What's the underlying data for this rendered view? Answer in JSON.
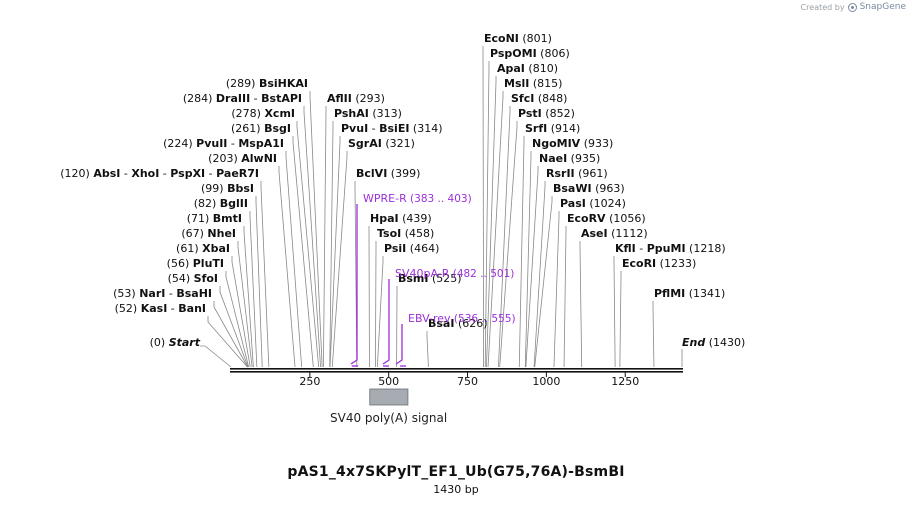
{
  "credit": {
    "prefix": "Created by",
    "brand": "SnapGene"
  },
  "plasmid": {
    "name": "pAS1_4x7SKPylT_EF1_Ub(G75,76A)-BsmBI",
    "length_label": "1430 bp"
  },
  "axis": {
    "min": 0,
    "max": 1430,
    "ticks": [
      250,
      500,
      750,
      1000,
      1250
    ]
  },
  "ends": {
    "start_label": "Start",
    "start_pos": "(0)",
    "end_label": "End",
    "end_pos": "(1430)"
  },
  "colors": {
    "primer": "#9b30d9",
    "feature": "#a7abb2",
    "line": "#888888",
    "text": "#111111"
  },
  "sites": [
    {
      "id": "kasi",
      "pos": 52,
      "pos_label": "(52)",
      "enzymes": [
        "KasI",
        "BanI"
      ]
    },
    {
      "id": "nari",
      "pos": 53,
      "pos_label": "(53)",
      "enzymes": [
        "NarI",
        "BsaHI"
      ]
    },
    {
      "id": "sfoi",
      "pos": 54,
      "pos_label": "(54)",
      "enzymes": [
        "SfoI"
      ]
    },
    {
      "id": "pluti",
      "pos": 56,
      "pos_label": "(56)",
      "enzymes": [
        "PluTI"
      ]
    },
    {
      "id": "xbai",
      "pos": 61,
      "pos_label": "(61)",
      "enzymes": [
        "XbaI"
      ]
    },
    {
      "id": "nhei",
      "pos": 67,
      "pos_label": "(67)",
      "enzymes": [
        "NheI"
      ]
    },
    {
      "id": "bmti",
      "pos": 71,
      "pos_label": "(71)",
      "enzymes": [
        "BmtI"
      ]
    },
    {
      "id": "bglii",
      "pos": 82,
      "pos_label": "(82)",
      "enzymes": [
        "BglII"
      ]
    },
    {
      "id": "bbsi",
      "pos": 99,
      "pos_label": "(99)",
      "enzymes": [
        "BbsI"
      ]
    },
    {
      "id": "absi",
      "pos": 120,
      "pos_label": "(120)",
      "enzymes": [
        "AbsI",
        "XhoI",
        "PspXI",
        "PaeR7I"
      ]
    },
    {
      "id": "alwni",
      "pos": 203,
      "pos_label": "(203)",
      "enzymes": [
        "AlwNI"
      ]
    },
    {
      "id": "pvuii",
      "pos": 224,
      "pos_label": "(224)",
      "enzymes": [
        "PvuII",
        "MspA1I"
      ]
    },
    {
      "id": "bsgi",
      "pos": 261,
      "pos_label": "(261)",
      "enzymes": [
        "BsgI"
      ]
    },
    {
      "id": "xcmi",
      "pos": 278,
      "pos_label": "(278)",
      "enzymes": [
        "XcmI"
      ]
    },
    {
      "id": "draiii",
      "pos": 284,
      "pos_label": "(284)",
      "enzymes": [
        "DraIII",
        "BstAPI"
      ]
    },
    {
      "id": "bsihkai",
      "pos": 289,
      "pos_label": "(289)",
      "enzymes": [
        "BsiHKAI"
      ]
    },
    {
      "id": "aflii",
      "pos": 293,
      "pos_label": "(293)",
      "enzymes": [
        "AflII"
      ]
    },
    {
      "id": "pshai",
      "pos": 313,
      "pos_label": "(313)",
      "enzymes": [
        "PshAI"
      ]
    },
    {
      "id": "pvui",
      "pos": 314,
      "pos_label": "(314)",
      "enzymes": [
        "PvuI",
        "BsiEI"
      ]
    },
    {
      "id": "sgrai",
      "pos": 321,
      "pos_label": "(321)",
      "enzymes": [
        "SgrAI"
      ]
    },
    {
      "id": "bclvi",
      "pos": 399,
      "pos_label": "(399)",
      "enzymes": [
        "BclVI"
      ]
    },
    {
      "id": "hpai",
      "pos": 439,
      "pos_label": "(439)",
      "enzymes": [
        "HpaI"
      ]
    },
    {
      "id": "tsoi",
      "pos": 458,
      "pos_label": "(458)",
      "enzymes": [
        "TsoI"
      ]
    },
    {
      "id": "psii",
      "pos": 464,
      "pos_label": "(464)",
      "enzymes": [
        "PsiI"
      ]
    },
    {
      "id": "bsmi",
      "pos": 525,
      "pos_label": "(525)",
      "enzymes": [
        "BsmI"
      ]
    },
    {
      "id": "bsai",
      "pos": 626,
      "pos_label": "(626)",
      "enzymes": [
        "BsaI"
      ]
    },
    {
      "id": "econi",
      "pos": 801,
      "pos_label": "(801)",
      "enzymes": [
        "EcoNI"
      ]
    },
    {
      "id": "pspomi",
      "pos": 806,
      "pos_label": "(806)",
      "enzymes": [
        "PspOMI"
      ]
    },
    {
      "id": "apai",
      "pos": 810,
      "pos_label": "(810)",
      "enzymes": [
        "ApaI"
      ]
    },
    {
      "id": "msli",
      "pos": 815,
      "pos_label": "(815)",
      "enzymes": [
        "MslI"
      ]
    },
    {
      "id": "sfci",
      "pos": 848,
      "pos_label": "(848)",
      "enzymes": [
        "SfcI"
      ]
    },
    {
      "id": "psti",
      "pos": 852,
      "pos_label": "(852)",
      "enzymes": [
        "PstI"
      ]
    },
    {
      "id": "srfi",
      "pos": 914,
      "pos_label": "(914)",
      "enzymes": [
        "SrfI"
      ]
    },
    {
      "id": "ngomiv",
      "pos": 933,
      "pos_label": "(933)",
      "enzymes": [
        "NgoMIV"
      ]
    },
    {
      "id": "naei",
      "pos": 935,
      "pos_label": "(935)",
      "enzymes": [
        "NaeI"
      ]
    },
    {
      "id": "rsrii",
      "pos": 961,
      "pos_label": "(961)",
      "enzymes": [
        "RsrII"
      ]
    },
    {
      "id": "bsawi",
      "pos": 963,
      "pos_label": "(963)",
      "enzymes": [
        "BsaWI"
      ]
    },
    {
      "id": "pasi",
      "pos": 1024,
      "pos_label": "(1024)",
      "enzymes": [
        "PasI"
      ]
    },
    {
      "id": "ecorv",
      "pos": 1056,
      "pos_label": "(1056)",
      "enzymes": [
        "EcoRV"
      ]
    },
    {
      "id": "asei",
      "pos": 1112,
      "pos_label": "(1112)",
      "enzymes": [
        "AseI"
      ]
    },
    {
      "id": "kfli",
      "pos": 1218,
      "pos_label": "(1218)",
      "enzymes": [
        "KflI",
        "PpuMI"
      ]
    },
    {
      "id": "ecori",
      "pos": 1233,
      "pos_label": "(1233)",
      "enzymes": [
        "EcoRI"
      ]
    },
    {
      "id": "pflmi",
      "pos": 1341,
      "pos_label": "(1341)",
      "enzymes": [
        "PflMI"
      ]
    }
  ],
  "primers": [
    {
      "id": "wpre-r",
      "name": "WPRE-R",
      "range_label": "(383 .. 403)",
      "start": 383,
      "end": 403
    },
    {
      "id": "sv40pa-r",
      "name": "SV40pA-R",
      "range_label": "(482 .. 501)",
      "start": 482,
      "end": 501
    },
    {
      "id": "ebv-rev",
      "name": "EBV-rev",
      "range_label": "(536 .. 555)",
      "start": 536,
      "end": 555
    }
  ],
  "features": [
    {
      "id": "sv40-polya",
      "name": "SV40 poly(A) signal",
      "start": 440,
      "end": 561
    }
  ]
}
